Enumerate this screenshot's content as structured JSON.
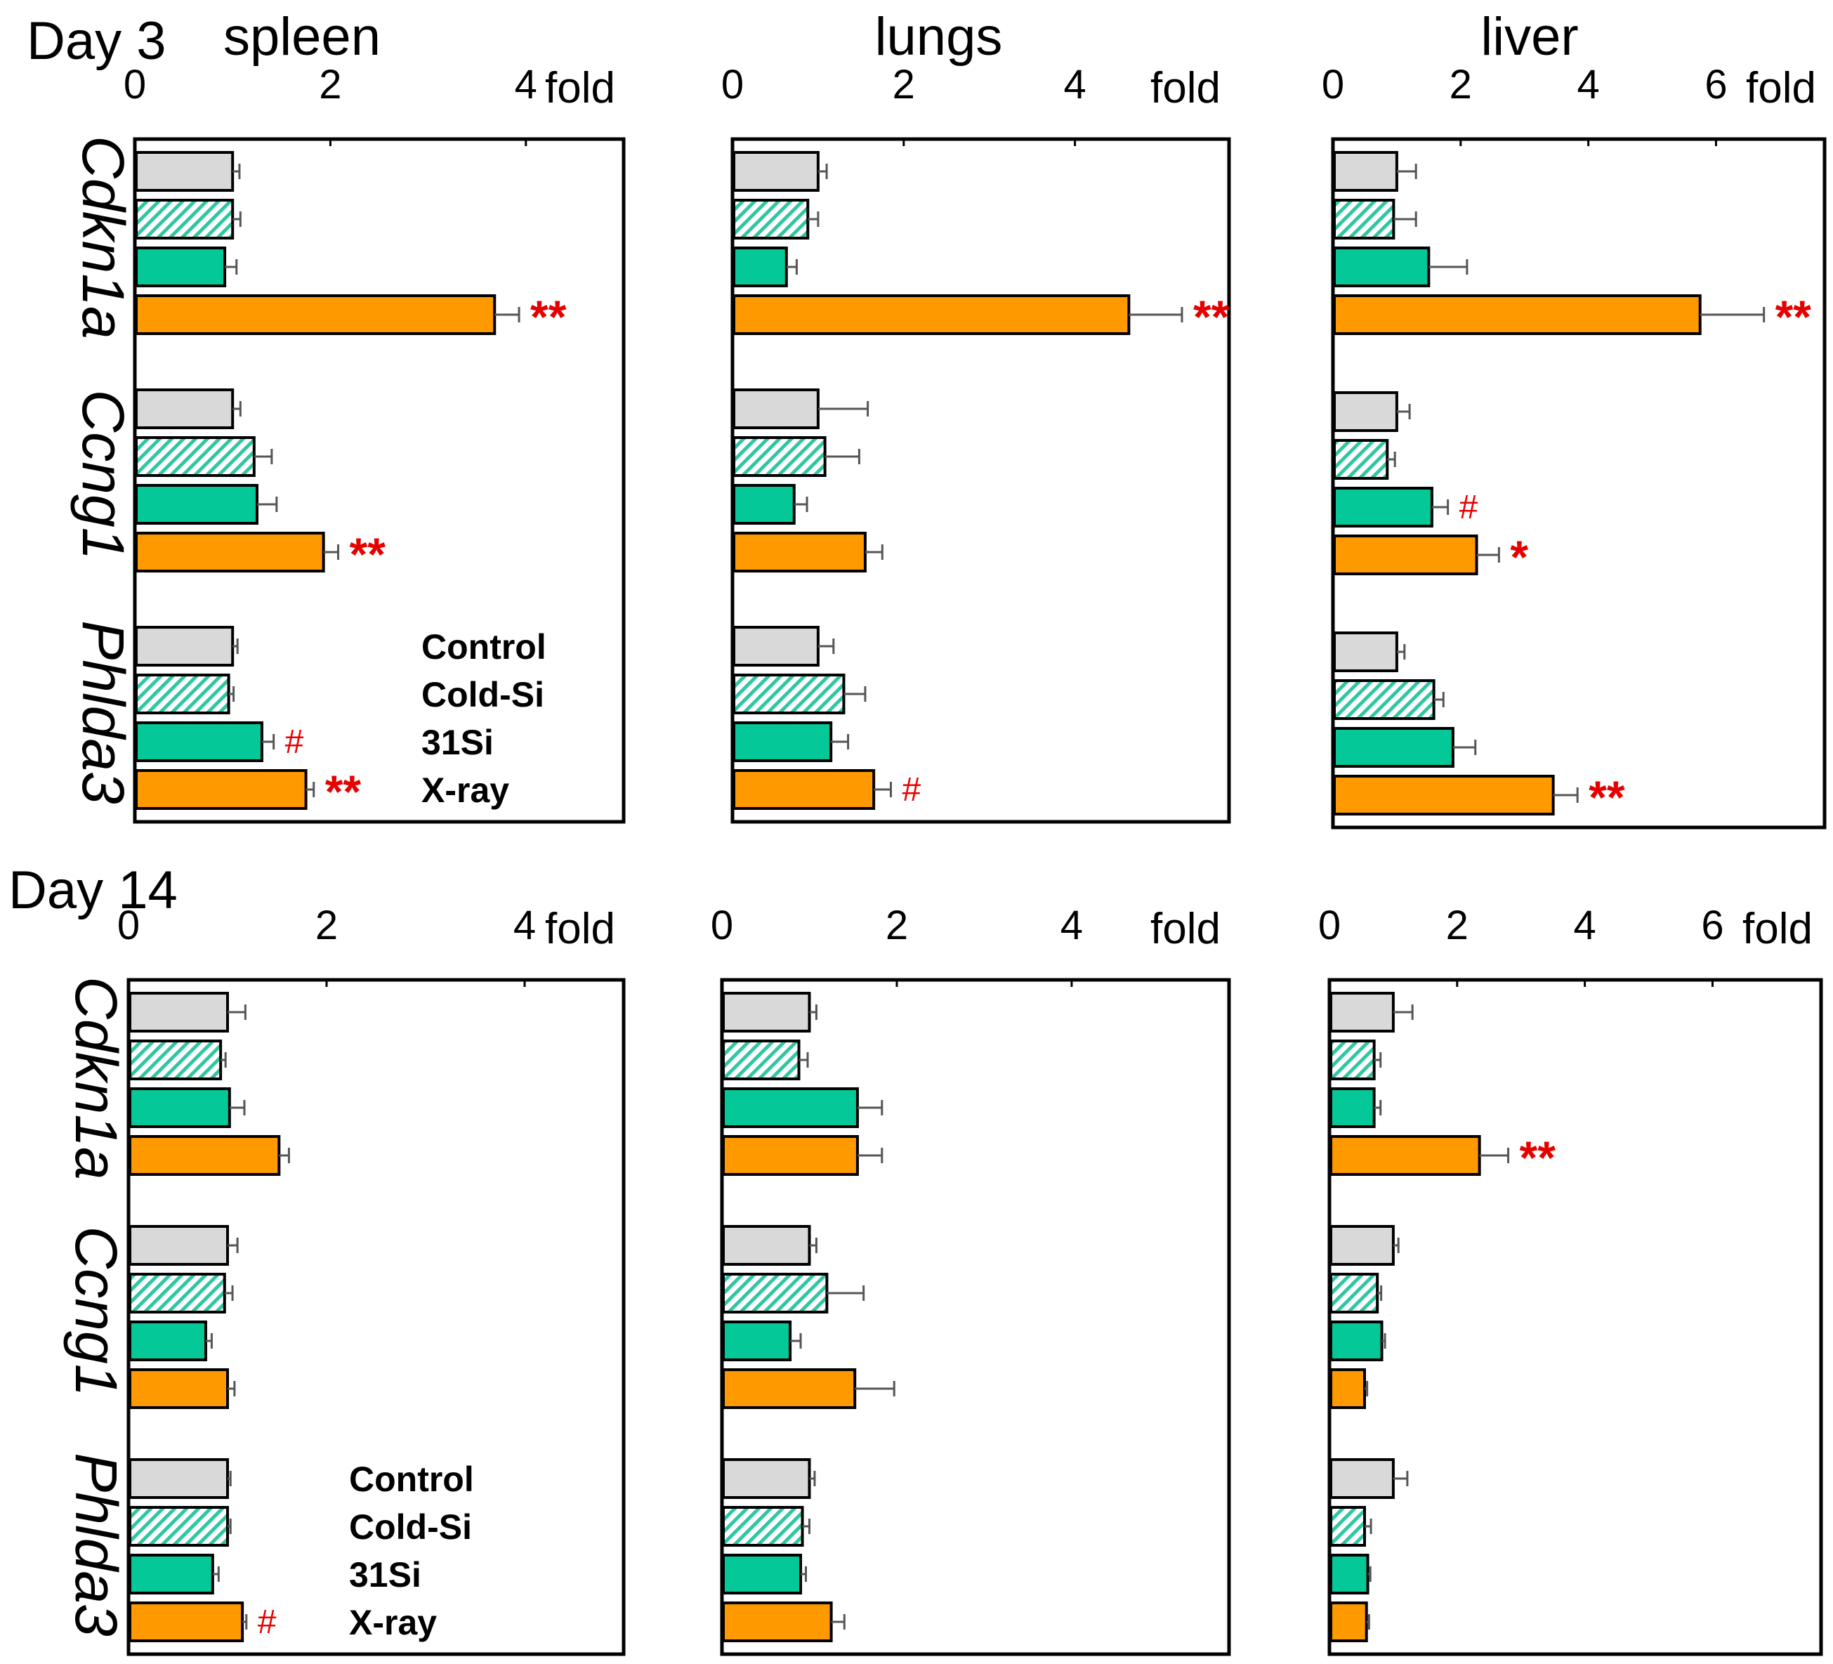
{
  "colors": {
    "control": "#d9d9d9",
    "coldsi_fill": "#ffffff",
    "coldsi_hatch": "#2fc7a3",
    "si31": "#05c898",
    "xray": "#ff9900",
    "significance": "#e60000",
    "error_bar": "#555555"
  },
  "legend": [
    "Control",
    "Cold-Si",
    "31Si",
    "X-ray"
  ],
  "genes": [
    "Cdkn1a",
    "Ccng1",
    "Phlda3"
  ],
  "unit": "fold",
  "chart_data": [
    {
      "type": "bar",
      "orientation": "horizontal",
      "day": "Day 3",
      "organ": "spleen",
      "xlabel": "fold",
      "xlim": [
        0,
        5
      ],
      "ticks": [
        0,
        2,
        4
      ],
      "show_legend": true,
      "series_names": [
        "Control",
        "Cold-Si",
        "31Si",
        "X-ray"
      ],
      "groups": [
        {
          "gene": "Cdkn1a",
          "values": [
            1.0,
            1.0,
            0.92,
            3.68
          ],
          "errors": [
            0.07,
            0.08,
            0.12,
            0.25
          ],
          "sig": [
            "",
            "",
            "",
            "**"
          ]
        },
        {
          "gene": "Ccng1",
          "values": [
            1.0,
            1.22,
            1.25,
            1.93
          ],
          "errors": [
            0.08,
            0.18,
            0.2,
            0.15
          ],
          "sig": [
            "",
            "",
            "",
            "**"
          ]
        },
        {
          "gene": "Phlda3",
          "values": [
            1.0,
            0.96,
            1.3,
            1.75
          ],
          "errors": [
            0.05,
            0.05,
            0.12,
            0.08
          ],
          "sig": [
            "",
            "",
            "#",
            "**"
          ]
        }
      ]
    },
    {
      "type": "bar",
      "orientation": "horizontal",
      "day": "",
      "organ": "lungs",
      "xlabel": "fold",
      "xlim": [
        0,
        5.8
      ],
      "ticks": [
        0,
        2,
        4
      ],
      "show_legend": false,
      "series_names": [
        "Control",
        "Cold-Si",
        "31Si",
        "X-ray"
      ],
      "groups": [
        {
          "gene": "Cdkn1a",
          "values": [
            1.0,
            0.88,
            0.63,
            4.63
          ],
          "errors": [
            0.1,
            0.12,
            0.12,
            0.62
          ],
          "sig": [
            "",
            "",
            "",
            "**"
          ]
        },
        {
          "gene": "Ccng1",
          "values": [
            1.0,
            1.08,
            0.72,
            1.55
          ],
          "errors": [
            0.58,
            0.4,
            0.15,
            0.2
          ],
          "sig": [
            "",
            "",
            "",
            ""
          ]
        },
        {
          "gene": "Phlda3",
          "values": [
            1.0,
            1.3,
            1.15,
            1.65
          ],
          "errors": [
            0.18,
            0.25,
            0.2,
            0.2
          ],
          "sig": [
            "",
            "",
            "",
            "#"
          ]
        }
      ]
    },
    {
      "type": "bar",
      "orientation": "horizontal",
      "day": "",
      "organ": "liver",
      "xlabel": "fold",
      "xlim": [
        0,
        7.7
      ],
      "ticks": [
        0,
        2,
        4,
        6
      ],
      "show_legend": false,
      "series_names": [
        "Control",
        "Cold-Si",
        "31Si",
        "X-ray"
      ],
      "groups": [
        {
          "gene": "Cdkn1a",
          "values": [
            1.0,
            0.95,
            1.5,
            5.75
          ],
          "errors": [
            0.3,
            0.35,
            0.6,
            1.0
          ],
          "sig": [
            "",
            "",
            "",
            "**"
          ]
        },
        {
          "gene": "Ccng1",
          "values": [
            1.0,
            0.85,
            1.55,
            2.25
          ],
          "errors": [
            0.2,
            0.12,
            0.25,
            0.35
          ],
          "sig": [
            "",
            "",
            "#",
            "*"
          ]
        },
        {
          "gene": "Phlda3",
          "values": [
            1.0,
            1.58,
            1.88,
            3.45
          ],
          "errors": [
            0.12,
            0.15,
            0.35,
            0.38
          ],
          "sig": [
            "",
            "",
            "",
            "**"
          ]
        }
      ]
    },
    {
      "type": "bar",
      "orientation": "horizontal",
      "day": "Day 14",
      "organ": "",
      "xlabel": "fold",
      "xlim": [
        0,
        5.0
      ],
      "ticks": [
        0,
        2,
        4
      ],
      "show_legend": true,
      "series_names": [
        "Control",
        "Cold-Si",
        "31Si",
        "X-ray"
      ],
      "groups": [
        {
          "gene": "Cdkn1a",
          "values": [
            1.0,
            0.93,
            1.02,
            1.52
          ],
          "errors": [
            0.18,
            0.05,
            0.15,
            0.1
          ],
          "sig": [
            "",
            "",
            "",
            ""
          ]
        },
        {
          "gene": "Ccng1",
          "values": [
            1.0,
            0.97,
            0.78,
            1.0
          ],
          "errors": [
            0.1,
            0.08,
            0.06,
            0.07
          ],
          "sig": [
            "",
            "",
            "",
            ""
          ]
        },
        {
          "gene": "Phlda3",
          "values": [
            1.0,
            1.0,
            0.85,
            1.15
          ],
          "errors": [
            0.03,
            0.03,
            0.06,
            0.04
          ],
          "sig": [
            "",
            "",
            "",
            "#"
          ]
        }
      ]
    },
    {
      "type": "bar",
      "orientation": "horizontal",
      "day": "",
      "organ": "",
      "xlabel": "fold",
      "xlim": [
        0,
        5.8
      ],
      "ticks": [
        0,
        2,
        4
      ],
      "show_legend": false,
      "series_names": [
        "Control",
        "Cold-Si",
        "31Si",
        "X-ray"
      ],
      "groups": [
        {
          "gene": "Cdkn1a",
          "values": [
            1.0,
            0.88,
            1.55,
            1.55
          ],
          "errors": [
            0.08,
            0.1,
            0.28,
            0.28
          ],
          "sig": [
            "",
            "",
            "",
            ""
          ]
        },
        {
          "gene": "Ccng1",
          "values": [
            1.0,
            1.2,
            0.78,
            1.52
          ],
          "errors": [
            0.08,
            0.42,
            0.12,
            0.45
          ],
          "sig": [
            "",
            "",
            "",
            ""
          ]
        },
        {
          "gene": "Phlda3",
          "values": [
            1.0,
            0.92,
            0.9,
            1.25
          ],
          "errors": [
            0.06,
            0.08,
            0.06,
            0.15
          ],
          "sig": [
            "",
            "",
            "",
            ""
          ]
        }
      ]
    },
    {
      "type": "bar",
      "orientation": "horizontal",
      "day": "",
      "organ": "",
      "xlabel": "fold",
      "xlim": [
        0,
        7.7
      ],
      "ticks": [
        0,
        2,
        4,
        6
      ],
      "show_legend": false,
      "series_names": [
        "Control",
        "Cold-Si",
        "31Si",
        "X-ray"
      ],
      "groups": [
        {
          "gene": "Cdkn1a",
          "values": [
            1.0,
            0.7,
            0.7,
            2.35
          ],
          "errors": [
            0.3,
            0.1,
            0.1,
            0.45
          ],
          "sig": [
            "",
            "",
            "",
            "**"
          ]
        },
        {
          "gene": "Ccng1",
          "values": [
            1.0,
            0.75,
            0.82,
            0.55
          ],
          "errors": [
            0.08,
            0.06,
            0.05,
            0.04
          ],
          "sig": [
            "",
            "",
            "",
            ""
          ]
        },
        {
          "gene": "Phlda3",
          "values": [
            1.0,
            0.55,
            0.6,
            0.58
          ],
          "errors": [
            0.22,
            0.1,
            0.04,
            0.04
          ],
          "sig": [
            "",
            "",
            "",
            ""
          ]
        }
      ]
    }
  ]
}
